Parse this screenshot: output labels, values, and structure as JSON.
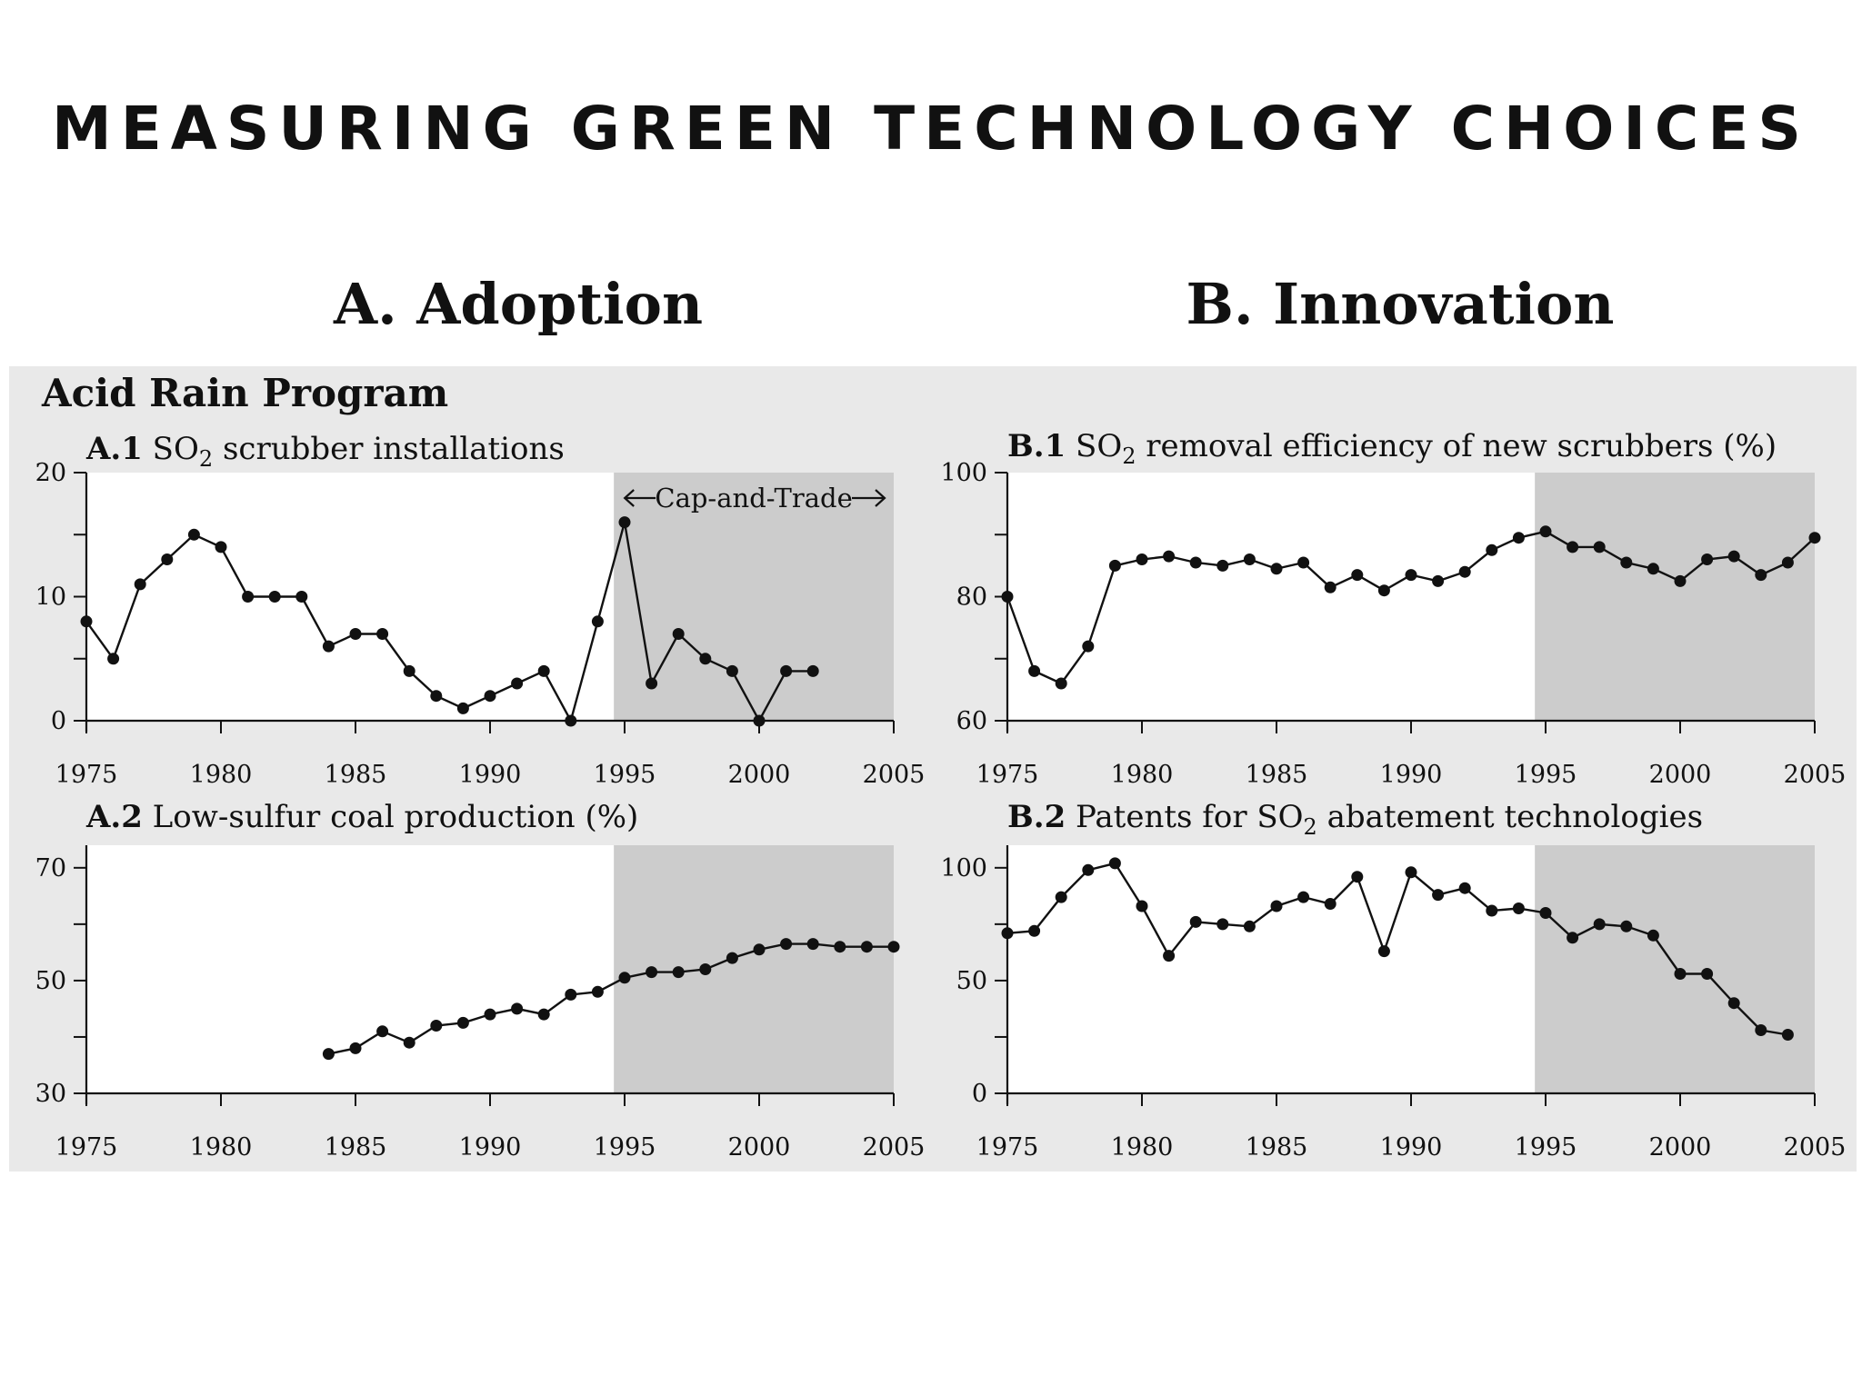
{
  "slide_title": "MEASURING GREEN TECHNOLOGY CHOICES",
  "column_a_title": "A. Adoption",
  "column_b_title": "B. Innovation",
  "program_title": "Acid Rain Program",
  "colors": {
    "panel_bg": "#e9e9e9",
    "shade": "#cccccc",
    "plot_bg": "#ffffff",
    "line": "#111111"
  },
  "chart_data": [
    {
      "id": "a1",
      "type": "line",
      "label": "A.1",
      "title_pre": "SO",
      "title_sub": "2",
      "title_post": " scrubber installations",
      "xlim": [
        1975,
        2005
      ],
      "ylim": [
        0,
        20
      ],
      "yticks": [
        0,
        10,
        20
      ],
      "yminor": [
        5,
        15
      ],
      "xticks": [
        1975,
        1980,
        1985,
        1990,
        1995,
        2000,
        2005
      ],
      "shade_from": 1994.6,
      "shade_to": 2005,
      "annotation": "Cap-and-Trade",
      "x": [
        1975,
        1976,
        1977,
        1978,
        1979,
        1980,
        1981,
        1982,
        1983,
        1984,
        1985,
        1986,
        1987,
        1988,
        1989,
        1990,
        1991,
        1992,
        1993,
        1994,
        1995,
        1996,
        1997,
        1998,
        1999,
        2000,
        2001,
        2002
      ],
      "y": [
        8,
        5,
        11,
        13,
        15,
        14,
        10,
        10,
        10,
        6,
        7,
        7,
        4,
        2,
        1,
        2,
        3,
        4,
        0,
        8,
        16,
        3,
        7,
        5,
        4,
        0,
        4,
        4
      ]
    },
    {
      "id": "b1",
      "type": "line",
      "label": "B.1",
      "title_pre": "SO",
      "title_sub": "2",
      "title_post": " removal efficiency of new scrubbers (%)",
      "xlim": [
        1975,
        2005
      ],
      "ylim": [
        60,
        100
      ],
      "yticks": [
        60,
        80,
        100
      ],
      "yminor": [
        70,
        90
      ],
      "xticks": [
        1975,
        1980,
        1985,
        1990,
        1995,
        2000,
        2005
      ],
      "shade_from": 1994.6,
      "shade_to": 2005,
      "x": [
        1975,
        1976,
        1977,
        1978,
        1979,
        1980,
        1981,
        1982,
        1983,
        1984,
        1985,
        1986,
        1987,
        1988,
        1989,
        1990,
        1991,
        1992,
        1993,
        1994,
        1995,
        1996,
        1997,
        1998,
        1999,
        2000,
        2001,
        2002,
        2003,
        2004,
        2005
      ],
      "y": [
        80,
        68,
        66,
        72,
        85,
        86,
        86.5,
        85.5,
        85,
        86,
        84.5,
        85.5,
        81.5,
        83.5,
        81,
        83.5,
        82.5,
        84,
        87.5,
        89.5,
        90.5,
        88,
        88,
        85.5,
        84.5,
        82.5,
        86,
        86.5,
        83.5,
        85.5,
        89.5
      ]
    },
    {
      "id": "a2",
      "type": "line",
      "label": "A.2",
      "title_pre": "Low-sulfur coal production (%)",
      "title_sub": "",
      "title_post": "",
      "xlim": [
        1975,
        2005
      ],
      "ylim": [
        30,
        74
      ],
      "yticks": [
        30,
        50,
        70
      ],
      "yminor": [
        40,
        60
      ],
      "xticks": [
        1975,
        1980,
        1985,
        1990,
        1995,
        2000,
        2005
      ],
      "shade_from": 1994.6,
      "shade_to": 2005,
      "x": [
        1984,
        1985,
        1986,
        1987,
        1988,
        1989,
        1990,
        1991,
        1992,
        1993,
        1994,
        1995,
        1996,
        1997,
        1998,
        1999,
        2000,
        2001,
        2002,
        2003,
        2004,
        2005
      ],
      "y": [
        37,
        38,
        41,
        39,
        42,
        42.5,
        44,
        45,
        44,
        47.5,
        48,
        50.5,
        51.5,
        51.5,
        52,
        54,
        55.5,
        56.5,
        56.5,
        56,
        56,
        56
      ]
    },
    {
      "id": "b2",
      "type": "line",
      "label": "B.2",
      "title_pre": "Patents for SO",
      "title_sub": "2",
      "title_post": " abatement technologies",
      "xlim": [
        1975,
        2005
      ],
      "ylim": [
        0,
        110
      ],
      "yticks": [
        0,
        50,
        100
      ],
      "yminor": [
        25,
        75
      ],
      "xticks": [
        1975,
        1980,
        1985,
        1990,
        1995,
        2000,
        2005
      ],
      "shade_from": 1994.6,
      "shade_to": 2005,
      "x": [
        1975,
        1976,
        1977,
        1978,
        1979,
        1980,
        1981,
        1982,
        1983,
        1984,
        1985,
        1986,
        1987,
        1988,
        1989,
        1990,
        1991,
        1992,
        1993,
        1994,
        1995,
        1996,
        1997,
        1998,
        1999,
        2000,
        2001,
        2002,
        2003,
        2004
      ],
      "y": [
        71,
        72,
        87,
        99,
        102,
        83,
        61,
        76,
        75,
        74,
        83,
        87,
        84,
        96,
        63,
        98,
        88,
        91,
        81,
        82,
        80,
        69,
        75,
        74,
        70,
        53,
        53,
        40,
        28,
        26
      ]
    }
  ]
}
